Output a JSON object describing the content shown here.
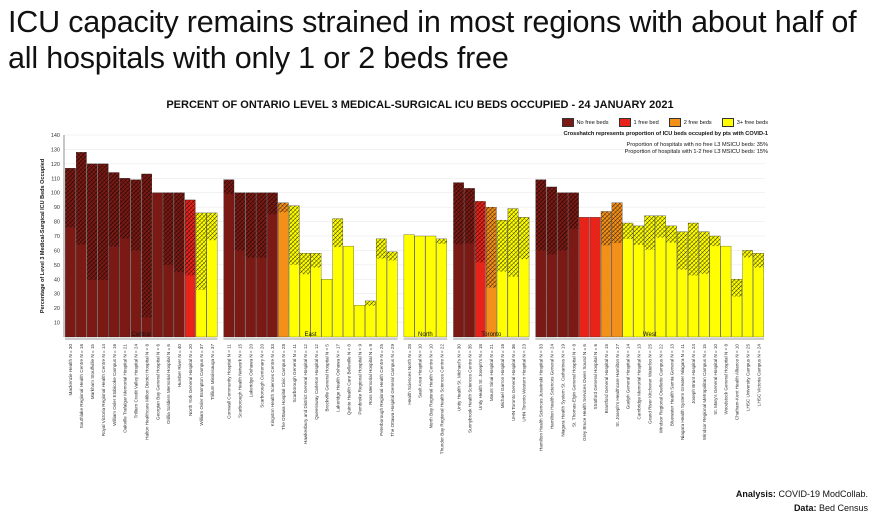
{
  "slide_title": "ICU capacity remains strained in most regions with about half of all hospitals with only 1 or 2 beds free",
  "footer": {
    "analysis_label": "Analysis:",
    "analysis_value": "COVID-19 ModCollab.",
    "data_label": "Data:",
    "data_value": "Bed Census"
  },
  "colors": {
    "no_free": "#7B1A14",
    "one_free": "#E8241A",
    "two_free": "#F3901A",
    "three_plus": "#FFFF00"
  },
  "chart_data": {
    "type": "bar",
    "title": "PERCENT OF ONTARIO LEVEL 3 MEDICAL-SURGICAL ICU BEDS OCCUPIED - 24 JANUARY 2021",
    "ylabel": "Percentage of Level 3 Medical-Surgical ICU Beds Occupied",
    "ylim": [
      0,
      140
    ],
    "yticks": [
      10,
      20,
      30,
      40,
      50,
      60,
      70,
      80,
      90,
      100,
      110,
      120,
      130,
      140
    ],
    "legend": {
      "placement": "top-right",
      "entries": [
        "No free beds",
        "1 free bed",
        "2 free beds",
        "3+ free beds"
      ],
      "note": "Crosshatch represents proportion of ICU beds occupied by pts with COVID-1",
      "stats": [
        "Proportion of hospitals with no free L3 MSICU beds:  35%",
        "Proportion of hospitals with 1-2 free L3 MSICU beds:  15%"
      ]
    },
    "regions": [
      {
        "name": "Central",
        "bars": [
          {
            "label": "Mackenzie Health N = 30",
            "value": 117,
            "covid": 35,
            "status": "no_free"
          },
          {
            "label": "Southlake Regional Health Centre N = 16",
            "value": 128,
            "covid": 50,
            "status": "no_free"
          },
          {
            "label": "Markham Stouffville N = 15",
            "value": 120,
            "covid": 67,
            "status": "no_free"
          },
          {
            "label": "Royal Victoria Regional Health Centre N = 14",
            "value": 120,
            "covid": 67,
            "status": "no_free"
          },
          {
            "label": "William Osler Etobicoke Campus N = 16",
            "value": 114,
            "covid": 45,
            "status": "no_free"
          },
          {
            "label": "Oakville Trafalgar Memorial Hospital N = 21",
            "value": 110,
            "covid": 38,
            "status": "no_free"
          },
          {
            "label": "Trillium Credit Valley Hospital N = 24",
            "value": 109,
            "covid": 45,
            "status": "no_free"
          },
          {
            "label": "Halton Healthcare Milton District Hospital N = 8",
            "value": 113,
            "covid": 88,
            "status": "no_free"
          },
          {
            "label": "Georgian Bay General Hospital N = 6",
            "value": 100,
            "covid": 0,
            "status": "no_free"
          },
          {
            "label": "Orillia Soldiers Memorial Hospital N = 6",
            "value": 100,
            "covid": 50,
            "status": "no_free"
          },
          {
            "label": "Humber River N = 40",
            "value": 100,
            "covid": 55,
            "status": "no_free"
          },
          {
            "label": "North York General Hospital N = 20",
            "value": 95,
            "covid": 55,
            "status": "one_free"
          },
          {
            "label": "William Osler Brampton Campus N = 37",
            "value": 86,
            "covid": 62,
            "status": "three_plus"
          },
          {
            "label": "Trillium Mississauga N = 37",
            "value": 86,
            "covid": 22,
            "status": "three_plus"
          }
        ]
      },
      {
        "name": "East",
        "bars": [
          {
            "label": "Cornwall Community Hospital N = 11",
            "value": 109,
            "covid": 9,
            "status": "no_free"
          },
          {
            "label": "Scarborough Health Network N = 15",
            "value": 100,
            "covid": 40,
            "status": "no_free"
          },
          {
            "label": "Lakeridge Oshawa N = 20",
            "value": 100,
            "covid": 45,
            "status": "no_free"
          },
          {
            "label": "Scarborough Centenary N = 20",
            "value": 100,
            "covid": 45,
            "status": "no_free"
          },
          {
            "label": "Kingston Health Sciences Centre N = 33",
            "value": 100,
            "covid": 15,
            "status": "no_free"
          },
          {
            "label": "The Ottawa Hospital Civic Campus N = 28",
            "value": 93,
            "covid": 7,
            "status": "two_free"
          },
          {
            "label": "Scarborough General N = 11",
            "value": 91,
            "covid": 45,
            "status": "three_plus"
          },
          {
            "label": "Hawkesbury and District General Hospital N = 12",
            "value": 58,
            "covid": 25,
            "status": "three_plus"
          },
          {
            "label": "Queensway Carleton Hospital N = 12",
            "value": 58,
            "covid": 17,
            "status": "three_plus"
          },
          {
            "label": "Brockville General Hospital N = 5",
            "value": 40,
            "covid": 0,
            "status": "three_plus"
          },
          {
            "label": "Lakeridge Health Oshawa N = 17",
            "value": 82,
            "covid": 24,
            "status": "three_plus"
          },
          {
            "label": "Quinte Health Care Belleville N = 8",
            "value": 63,
            "covid": 0,
            "status": "three_plus"
          },
          {
            "label": "Pembroke Regional Hospital N = 9",
            "value": 22,
            "covid": 0,
            "status": "three_plus"
          },
          {
            "label": "Ross Memorial Hospital N = 8",
            "value": 25,
            "covid": 13,
            "status": "three_plus"
          },
          {
            "label": "Peterborough Regional Health Centre N = 25",
            "value": 68,
            "covid": 20,
            "status": "three_plus"
          },
          {
            "label": "The Ottawa Hospital General Campus N = 29",
            "value": 59,
            "covid": 10,
            "status": "three_plus"
          }
        ]
      },
      {
        "name": "North",
        "bars": [
          {
            "label": "Health Sciences North N = 28",
            "value": 71,
            "covid": 0,
            "status": "three_plus"
          },
          {
            "label": "Sault Area Hospital N = 10",
            "value": 70,
            "covid": 0,
            "status": "three_plus"
          },
          {
            "label": "North Bay Regional Health Centre N = 10",
            "value": 70,
            "covid": 0,
            "status": "three_plus"
          },
          {
            "label": "Thunder Bay Regional Health Sciences Centre N = 22",
            "value": 68,
            "covid": 5,
            "status": "three_plus"
          }
        ]
      },
      {
        "name": "Toronto",
        "bars": [
          {
            "label": "Unity Health St. Michael's N = 30",
            "value": 107,
            "covid": 40,
            "status": "no_free"
          },
          {
            "label": "Sunnybrook Health Sciences Centre N = 35",
            "value": 103,
            "covid": 37,
            "status": "no_free"
          },
          {
            "label": "Unity Health St. Joseph's N = 18",
            "value": 94,
            "covid": 45,
            "status": "one_free"
          },
          {
            "label": "Mount Sinai Hospital N = 21",
            "value": 90,
            "covid": 62,
            "status": "two_free"
          },
          {
            "label": "Michael Garron Hospital N = 16",
            "value": 81,
            "covid": 44,
            "status": "three_plus"
          },
          {
            "label": "UHN Toronto General Hospital N = 36",
            "value": 89,
            "covid": 53,
            "status": "three_plus"
          },
          {
            "label": "UHN Toronto Western Hospital N = 23",
            "value": 83,
            "covid": 35,
            "status": "three_plus"
          }
        ]
      },
      {
        "name": "West",
        "bars": [
          {
            "label": "Hamilton Health Sciences Juravinski Hospital N = 33",
            "value": 109,
            "covid": 45,
            "status": "no_free"
          },
          {
            "label": "Hamilton Health Sciences General N = 24",
            "value": 104,
            "covid": 45,
            "status": "no_free"
          },
          {
            "label": "Niagara Health System St. Catharines N = 19",
            "value": 100,
            "covid": 40,
            "status": "no_free"
          },
          {
            "label": "St. Thomas-Elgin General Hospital N = 8",
            "value": 100,
            "covid": 25,
            "status": "no_free"
          },
          {
            "label": "Grey Bruce Health Services Owen Sound N = 6",
            "value": 83,
            "covid": 0,
            "status": "one_free"
          },
          {
            "label": "Stratford General Hospital N = 6",
            "value": 83,
            "covid": 0,
            "status": "one_free"
          },
          {
            "label": "Brantford General Hospital N = 15",
            "value": 87,
            "covid": 27,
            "status": "two_free"
          },
          {
            "label": "St. Joseph's Healthcare Hamilton N = 27",
            "value": 93,
            "covid": 30,
            "status": "two_free"
          },
          {
            "label": "Guelph General Hospital N = 14",
            "value": 79,
            "covid": 14,
            "status": "three_plus"
          },
          {
            "label": "Cambridge Memorial Hospital N = 13",
            "value": 77,
            "covid": 17,
            "status": "three_plus"
          },
          {
            "label": "Grand River Kitchener Waterloo N = 25",
            "value": 84,
            "covid": 28,
            "status": "three_plus"
          },
          {
            "label": "Windsor Regional Ouellette Campus N = 22",
            "value": 84,
            "covid": 18,
            "status": "three_plus"
          },
          {
            "label": "Bluewater Health Sarnia General N = 13",
            "value": 77,
            "covid": 15,
            "status": "three_plus"
          },
          {
            "label": "Niagara Health System Greater Niagara N = 11",
            "value": 73,
            "covid": 36,
            "status": "three_plus"
          },
          {
            "label": "Joseph Brant Hospital N = 24",
            "value": 79,
            "covid": 46,
            "status": "three_plus"
          },
          {
            "label": "Windsor Regional Metropolitan Campus N = 15",
            "value": 73,
            "covid": 40,
            "status": "three_plus"
          },
          {
            "label": "St. Mary's General Hospital N = 10",
            "value": 70,
            "covid": 10,
            "status": "three_plus"
          },
          {
            "label": "Woodstock General Hospital N = 8",
            "value": 63,
            "covid": 0,
            "status": "three_plus"
          },
          {
            "label": "Chatham-Kent Health Alliance N = 10",
            "value": 40,
            "covid": 30,
            "status": "three_plus"
          },
          {
            "label": "LHSC University Campus N = 25",
            "value": 60,
            "covid": 8,
            "status": "three_plus"
          },
          {
            "label": "LHSC Victoria Campus N = 24",
            "value": 58,
            "covid": 17,
            "status": "three_plus"
          }
        ]
      }
    ]
  }
}
